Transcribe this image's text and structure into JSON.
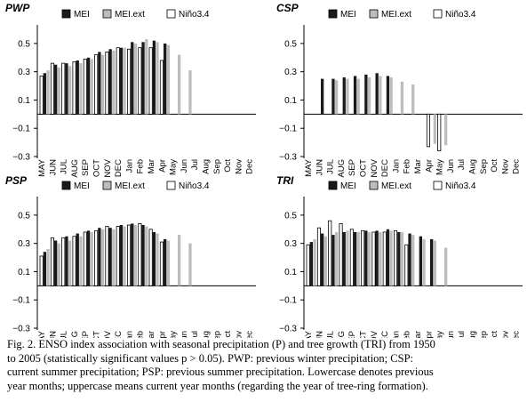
{
  "figure": {
    "legend_labels": [
      "MEI",
      "MEI.ext",
      "Niño3.4"
    ],
    "series_colors": {
      "MEI": "#1a1a1a",
      "MEI.ext": "#bdbdbd",
      "Niño3.4": "#ffffff"
    }
  },
  "chart_data": [
    {
      "type": "bar",
      "title": "PWP",
      "categories": [
        "MAY",
        "JUN",
        "JUL",
        "AUG",
        "SEP",
        "OCT",
        "NOV",
        "DEC",
        "Jan",
        "Feb",
        "Mar",
        "Apr",
        "May",
        "Jun",
        "Jul",
        "Aug",
        "Sep",
        "Oct",
        "Nov",
        "Dec"
      ],
      "yticks": [
        "0.5",
        "0.3",
        "0.1",
        "−0.1",
        "−0.3"
      ],
      "ylim": [
        -0.3,
        0.6
      ],
      "series": [
        {
          "name": "Niño3.4",
          "values": [
            0.27,
            0.36,
            0.36,
            0.37,
            0.39,
            0.42,
            0.44,
            0.47,
            0.46,
            0.47,
            0.47,
            0.38,
            null,
            null,
            null,
            null,
            null,
            null,
            null,
            null
          ]
        },
        {
          "name": "MEI",
          "values": [
            0.29,
            0.35,
            0.36,
            0.38,
            0.4,
            0.44,
            0.46,
            0.47,
            0.51,
            0.51,
            0.52,
            0.5,
            null,
            null,
            null,
            null,
            null,
            null,
            null,
            null
          ]
        },
        {
          "name": "MEI.ext",
          "values": [
            0.31,
            0.33,
            0.34,
            0.36,
            0.39,
            0.42,
            0.45,
            0.47,
            0.5,
            0.53,
            0.51,
            0.49,
            0.42,
            0.31,
            null,
            null,
            null,
            null,
            null,
            null
          ]
        }
      ]
    },
    {
      "type": "bar",
      "title": "CSP",
      "categories": [
        "MAY",
        "JUN",
        "JUL",
        "AUG",
        "SEP",
        "OCT",
        "NOV",
        "DEC",
        "Jan",
        "Feb",
        "Mar",
        "Apr",
        "May",
        "Jun",
        "Jul",
        "Aug",
        "Sep",
        "Oct",
        "Nov",
        "Dec"
      ],
      "yticks": [
        "0.5",
        "0.3",
        "0.1",
        "−0.1",
        "−0.3"
      ],
      "ylim": [
        -0.3,
        0.6
      ],
      "series": [
        {
          "name": "Niño3.4",
          "values": [
            null,
            null,
            null,
            null,
            null,
            null,
            null,
            null,
            null,
            null,
            null,
            -0.23,
            -0.26,
            null,
            null,
            null,
            null,
            null,
            null,
            null
          ]
        },
        {
          "name": "MEI",
          "values": [
            null,
            0.25,
            0.25,
            0.26,
            0.27,
            0.28,
            0.29,
            0.27,
            null,
            null,
            null,
            null,
            null,
            null,
            null,
            null,
            null,
            null,
            null,
            null
          ]
        },
        {
          "name": "MEI.ext",
          "values": [
            null,
            null,
            0.24,
            0.25,
            0.25,
            0.26,
            0.27,
            0.26,
            0.23,
            0.21,
            null,
            -0.21,
            -0.22,
            null,
            null,
            null,
            null,
            null,
            null,
            null
          ]
        }
      ]
    },
    {
      "type": "bar",
      "title": "PSP",
      "categories": [
        "MAY",
        "JUN",
        "JUL",
        "AUG",
        "SEP",
        "OCT",
        "NOV",
        "DEC",
        "Jan",
        "Feb",
        "Mar",
        "Apr",
        "May",
        "Jun",
        "Jul",
        "Aug",
        "Sep",
        "Oct",
        "Nov",
        "Dec"
      ],
      "yticks": [
        "0.5",
        "0.3",
        "0.1",
        "−0.1",
        "−0.3"
      ],
      "ylim": [
        -0.3,
        0.6
      ],
      "series": [
        {
          "name": "Niño3.4",
          "values": [
            0.21,
            0.34,
            0.34,
            0.35,
            0.38,
            0.39,
            0.42,
            0.42,
            0.43,
            0.44,
            0.4,
            0.31,
            null,
            null,
            null,
            null,
            null,
            null,
            null,
            null
          ]
        },
        {
          "name": "MEI",
          "values": [
            0.24,
            0.32,
            0.35,
            0.37,
            0.39,
            0.41,
            0.41,
            0.43,
            0.44,
            0.43,
            0.38,
            0.33,
            null,
            null,
            null,
            null,
            null,
            null,
            null,
            null
          ]
        },
        {
          "name": "MEI.ext",
          "values": [
            0.26,
            0.3,
            0.32,
            0.35,
            0.38,
            0.4,
            0.4,
            0.42,
            0.43,
            0.42,
            0.37,
            0.32,
            0.36,
            0.3,
            null,
            null,
            null,
            null,
            null,
            null
          ]
        }
      ]
    },
    {
      "type": "bar",
      "title": "TRI",
      "categories": [
        "MAY",
        "JUN",
        "JUL",
        "AUG",
        "SEP",
        "OCT",
        "NOV",
        "DEC",
        "Jan",
        "Feb",
        "Mar",
        "Apr",
        "May",
        "Jun",
        "Jul",
        "Aug",
        "Sep",
        "Oct",
        "Nov",
        "Dec"
      ],
      "yticks": [
        "0.5",
        "0.3",
        "0.1",
        "−0.1",
        "−0.3"
      ],
      "ylim": [
        -0.3,
        0.6
      ],
      "series": [
        {
          "name": "Niño3.4",
          "values": [
            0.29,
            0.41,
            0.46,
            0.44,
            0.4,
            0.39,
            0.38,
            0.38,
            0.39,
            0.29,
            null,
            null,
            null,
            null,
            null,
            null,
            null,
            null,
            null,
            null
          ]
        },
        {
          "name": "MEI",
          "values": [
            0.31,
            0.37,
            0.36,
            0.38,
            0.38,
            0.39,
            0.39,
            0.4,
            0.38,
            0.37,
            0.35,
            0.33,
            null,
            null,
            null,
            null,
            null,
            null,
            null,
            null
          ]
        },
        {
          "name": "MEI.ext",
          "values": [
            0.33,
            0.35,
            0.38,
            0.39,
            0.38,
            0.38,
            0.38,
            0.39,
            0.38,
            0.36,
            0.33,
            0.32,
            0.27,
            null,
            null,
            null,
            null,
            null,
            null,
            null
          ]
        }
      ]
    }
  ],
  "caption": {
    "lines": [
      "Fig. 2. ENSO index association with seasonal precipitation (P) and tree growth (TRI) from 1950",
      "to 2005 (statistically significant values p > 0.05). PWP: previous winter precipitation; CSP:",
      "current summer precipitation; PSP: previous summer precipitation. Lowercase denotes previous",
      "year months; uppercase means current year months (regarding the year of tree-ring formation)."
    ]
  }
}
